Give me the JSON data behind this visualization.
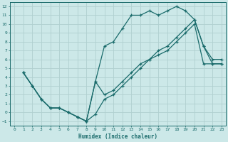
{
  "bg_color": "#cce8e8",
  "grid_color": "#b0d0d0",
  "line_color": "#1a6b6b",
  "xlabel": "Humidex (Indice chaleur)",
  "xlim": [
    -0.5,
    23.5
  ],
  "ylim": [
    -1.5,
    12.5
  ],
  "xticks": [
    0,
    1,
    2,
    3,
    4,
    5,
    6,
    7,
    8,
    9,
    10,
    11,
    12,
    13,
    14,
    15,
    16,
    17,
    18,
    19,
    20,
    21,
    22,
    23
  ],
  "yticks": [
    -1,
    0,
    1,
    2,
    3,
    4,
    5,
    6,
    7,
    8,
    9,
    10,
    11,
    12
  ],
  "line1_x": [
    1,
    2,
    3,
    4,
    5,
    6,
    7,
    8,
    9,
    10,
    11,
    12,
    13,
    14,
    15,
    16,
    17,
    18,
    19,
    20,
    21,
    22,
    23
  ],
  "line1_y": [
    4.5,
    3.0,
    1.5,
    0.5,
    0.5,
    0.0,
    -0.5,
    -1.0,
    3.5,
    7.5,
    8.0,
    9.5,
    11.0,
    11.0,
    11.5,
    11.0,
    11.5,
    12.0,
    11.5,
    10.5,
    7.5,
    6.0,
    6.0
  ],
  "line2_x": [
    1,
    2,
    3,
    4,
    5,
    6,
    7,
    8,
    9,
    10,
    11,
    12,
    13,
    14,
    15,
    16,
    17,
    18,
    19,
    20,
    21,
    22,
    23
  ],
  "line2_y": [
    4.5,
    3.0,
    1.5,
    0.5,
    0.5,
    0.0,
    -0.5,
    -1.0,
    -0.2,
    1.5,
    2.0,
    3.0,
    4.0,
    5.0,
    6.0,
    7.0,
    7.5,
    8.5,
    9.5,
    10.5,
    7.5,
    5.5,
    5.5
  ],
  "line3_x": [
    1,
    2,
    3,
    4,
    5,
    6,
    7,
    8,
    9,
    10,
    11,
    12,
    13,
    14,
    15,
    16,
    17,
    18,
    19,
    20,
    21,
    22,
    23
  ],
  "line3_y": [
    4.5,
    3.0,
    1.5,
    0.5,
    0.5,
    0.0,
    -0.5,
    -1.0,
    3.5,
    2.0,
    2.5,
    3.5,
    4.5,
    5.5,
    6.0,
    6.5,
    7.0,
    8.0,
    9.0,
    10.0,
    5.5,
    5.5,
    5.5
  ]
}
